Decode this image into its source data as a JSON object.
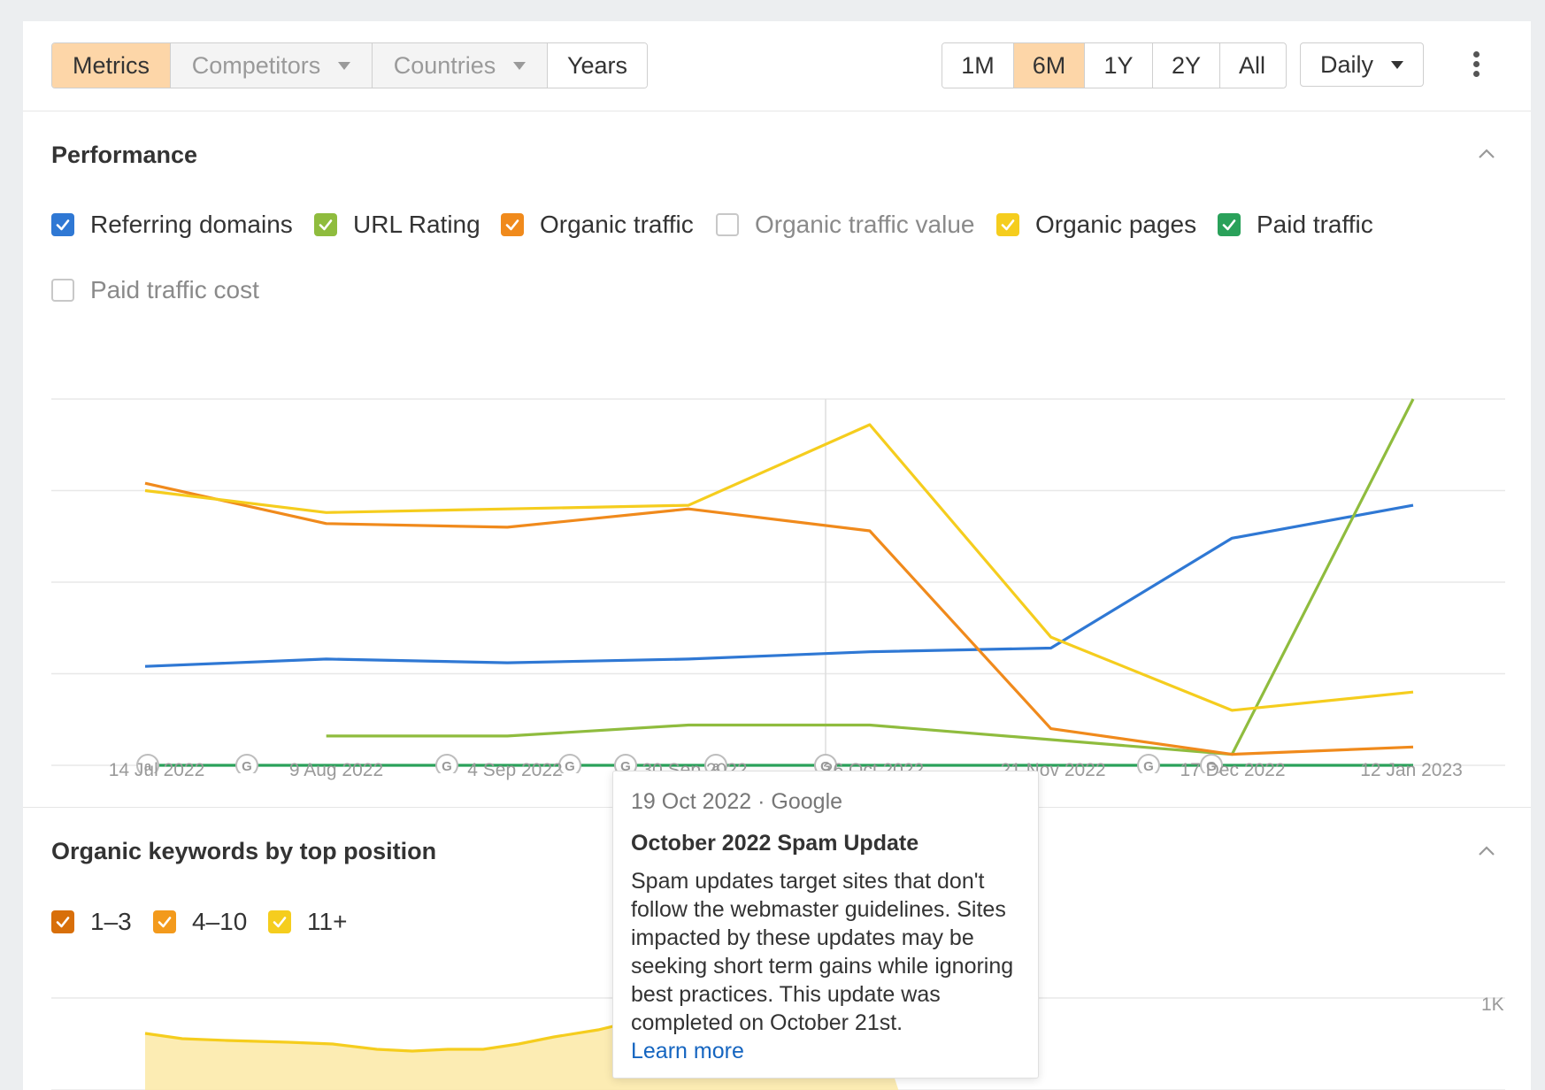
{
  "toolbar": {
    "tabs": {
      "metrics": "Metrics",
      "competitors": "Competitors",
      "countries": "Countries",
      "years": "Years"
    },
    "ranges": [
      "1M",
      "6M",
      "1Y",
      "2Y",
      "All"
    ],
    "active_range": "6M",
    "interval": "Daily"
  },
  "performance": {
    "title": "Performance",
    "legend": [
      {
        "label": "Referring domains",
        "checked": true,
        "color": "#2f78d4"
      },
      {
        "label": "URL Rating",
        "checked": true,
        "color": "#8fbc3e"
      },
      {
        "label": "Organic traffic",
        "checked": true,
        "color": "#f08a1c"
      },
      {
        "label": "Organic traffic value",
        "checked": false,
        "color": "#c8c8c8"
      },
      {
        "label": "Organic pages",
        "checked": true,
        "color": "#f5cd1e"
      },
      {
        "label": "Paid traffic",
        "checked": true,
        "color": "#2aa15a"
      },
      {
        "label": "Paid traffic cost",
        "checked": false,
        "color": "#c8c8c8"
      }
    ],
    "x_ticks": [
      "14 Jul 2022",
      "9 Aug 2022",
      "4 Sep 2022",
      "30 Sep 2022",
      "26 Oct 2022",
      "21 Nov 2022",
      "17 Dec 2022",
      "12 Jan 2023"
    ],
    "annotation_markers": [
      "a",
      "G",
      "G",
      "G",
      "G",
      "a",
      "G",
      "G",
      "G"
    ]
  },
  "chart_data": {
    "type": "line",
    "x": [
      "14 Jul 2022",
      "9 Aug 2022",
      "4 Sep 2022",
      "30 Sep 2022",
      "26 Oct 2022",
      "21 Nov 2022",
      "17 Dec 2022",
      "12 Jan 2023"
    ],
    "series": [
      {
        "name": "Referring domains",
        "color": "#2f78d4",
        "values": [
          27,
          29,
          28,
          29,
          31,
          32,
          62,
          71
        ]
      },
      {
        "name": "URL Rating",
        "color": "#8fbc3e",
        "values": [
          null,
          8,
          8,
          11,
          11,
          7,
          3,
          100
        ]
      },
      {
        "name": "Organic traffic",
        "color": "#f08a1c",
        "values": [
          77,
          66,
          65,
          70,
          64,
          10,
          3,
          5
        ]
      },
      {
        "name": "Organic pages",
        "color": "#f5cd1e",
        "values": [
          75,
          69,
          70,
          71,
          93,
          35,
          15,
          20
        ]
      },
      {
        "name": "Paid traffic",
        "color": "#2aa15a",
        "values": [
          0,
          0,
          0,
          0,
          0,
          0,
          0,
          0
        ]
      }
    ],
    "ylim": [
      0,
      100
    ],
    "grid": true
  },
  "keywords": {
    "title": "Organic keywords by top position",
    "legend": [
      {
        "label": "1–3",
        "checked": true,
        "color": "#d86f0a"
      },
      {
        "label": "4–10",
        "checked": true,
        "color": "#f39a1c"
      },
      {
        "label": "11+",
        "checked": true,
        "color": "#f5cd1e"
      }
    ],
    "y_tick": "1K"
  },
  "tooltip": {
    "meta": "19 Oct 2022 · Google",
    "title": "October 2022 Spam Update",
    "body": "Spam updates target sites that don't follow the webmaster guidelines. Sites impacted by these updates may be seeking short term gains while ignoring best practices. This update was completed on October 21st.",
    "link": "Learn more"
  }
}
